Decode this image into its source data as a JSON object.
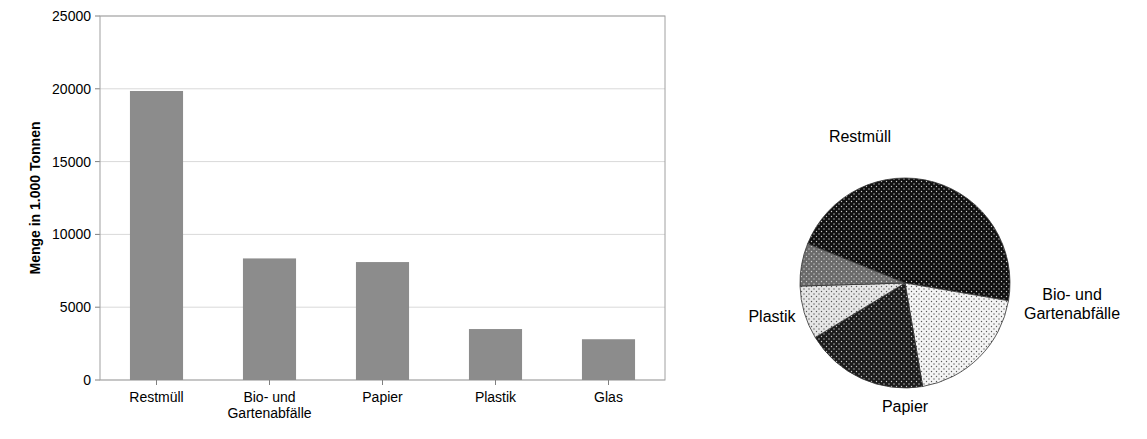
{
  "chart_data": [
    {
      "type": "bar",
      "y_label": "Menge in 1.000 Tonnen",
      "categories": [
        "Restmüll",
        "Bio- und Gartenabfälle",
        "Papier",
        "Plastik",
        "Glas"
      ],
      "values": [
        19850,
        8350,
        8100,
        3500,
        2800
      ],
      "color": "#8c8c8c",
      "ylim": [
        0,
        25000
      ],
      "yticks": [
        0,
        5000,
        10000,
        15000,
        20000,
        25000
      ],
      "grid": true
    },
    {
      "type": "pie",
      "categories": [
        "Restmüll",
        "Bio- und Gartenabfälle",
        "Papier",
        "Plastik",
        null
      ],
      "values": [
        19850,
        8350,
        8100,
        3500,
        2800
      ],
      "colors": [
        "#111111",
        "#f4f4f4",
        "#1c1c1c",
        "#e6e6e6",
        "#6a6a6a"
      ]
    }
  ]
}
